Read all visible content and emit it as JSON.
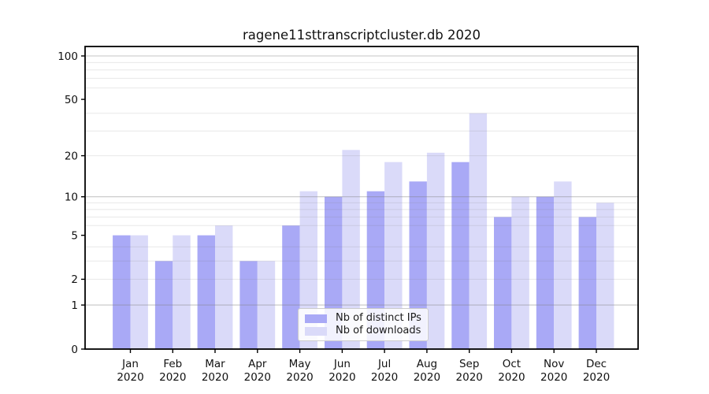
{
  "title": "ragene11sttranscriptcluster.db 2020",
  "chart_data": {
    "type": "bar",
    "title": "ragene11sttranscriptcluster.db 2020",
    "categories": [
      {
        "month": "Jan",
        "year": "2020"
      },
      {
        "month": "Feb",
        "year": "2020"
      },
      {
        "month": "Mar",
        "year": "2020"
      },
      {
        "month": "Apr",
        "year": "2020"
      },
      {
        "month": "May",
        "year": "2020"
      },
      {
        "month": "Jun",
        "year": "2020"
      },
      {
        "month": "Jul",
        "year": "2020"
      },
      {
        "month": "Aug",
        "year": "2020"
      },
      {
        "month": "Sep",
        "year": "2020"
      },
      {
        "month": "Oct",
        "year": "2020"
      },
      {
        "month": "Nov",
        "year": "2020"
      },
      {
        "month": "Dec",
        "year": "2020"
      }
    ],
    "series": [
      {
        "name": "Nb of distinct IPs",
        "color": "#a9a9f6",
        "values": [
          5,
          3,
          5,
          3,
          6,
          10,
          11,
          13,
          18,
          7,
          10,
          7
        ]
      },
      {
        "name": "Nb of downloads",
        "color": "#dadaf9",
        "values": [
          5,
          5,
          6,
          3,
          11,
          22,
          18,
          21,
          40,
          10,
          13,
          9
        ]
      }
    ],
    "xlabel": "",
    "ylabel": "",
    "y_scale": "log10(1+y)",
    "ylim": [
      0,
      116
    ],
    "yticks": [
      0,
      1,
      2,
      5,
      10,
      20,
      50,
      100
    ],
    "grid": {
      "on": true,
      "drawn_above_bars": true,
      "major": [
        1,
        10,
        100
      ],
      "minor": [
        2,
        3,
        4,
        6,
        7,
        8,
        9,
        20,
        30,
        40,
        60,
        70,
        80,
        90
      ],
      "major_color": "rgba(128,128,128,0.45)",
      "minor_color": "rgba(128,128,128,0.18)"
    },
    "legend_position": "lower center"
  },
  "legend": {
    "items": [
      {
        "label": "Nb of distinct IPs"
      },
      {
        "label": "Nb of downloads"
      }
    ]
  }
}
